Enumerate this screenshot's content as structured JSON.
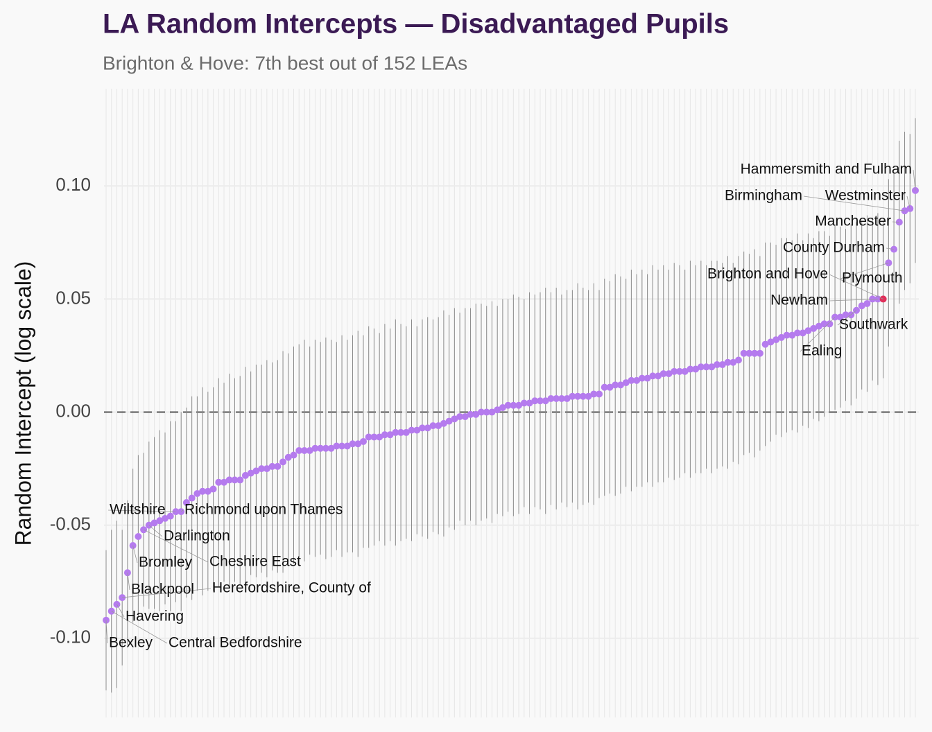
{
  "chart_data": {
    "type": "caterpillar",
    "title": "LA Random Intercepts — Disadvantaged Pupils",
    "subtitle": "Brighton & Hove: 7th best out of 152 LEAs",
    "y_label": "Random Intercept (log scale)",
    "categories": [
      "Bexley",
      "Central Bedfordshire",
      "Havering",
      "Herefordshire, County of",
      "Blackpool",
      "Bromley",
      null,
      "Cheshire East",
      "Darlington",
      null,
      null,
      null,
      null,
      "Wiltshire",
      "Richmond upon Thames",
      null,
      null,
      null,
      null,
      null,
      null,
      null,
      null,
      null,
      null,
      null,
      null,
      null,
      null,
      null,
      null,
      null,
      null,
      null,
      null,
      null,
      null,
      null,
      null,
      null,
      null,
      null,
      null,
      null,
      null,
      null,
      null,
      null,
      null,
      null,
      null,
      null,
      null,
      null,
      null,
      null,
      null,
      null,
      null,
      null,
      null,
      null,
      null,
      null,
      null,
      null,
      null,
      null,
      null,
      null,
      null,
      null,
      null,
      null,
      null,
      null,
      null,
      null,
      null,
      null,
      null,
      null,
      null,
      null,
      null,
      null,
      null,
      null,
      null,
      null,
      null,
      null,
      null,
      null,
      null,
      null,
      null,
      null,
      null,
      null,
      null,
      null,
      null,
      null,
      null,
      null,
      null,
      null,
      null,
      null,
      null,
      null,
      null,
      null,
      null,
      null,
      null,
      null,
      null,
      null,
      null,
      null,
      null,
      null,
      null,
      null,
      null,
      null,
      null,
      null,
      null,
      null,
      null,
      null,
      null,
      null,
      "Ealing",
      null,
      null,
      null,
      "Southwark",
      null,
      null,
      null,
      "Newham",
      "Brighton and Hove",
      "Plymouth",
      "County Durham",
      "Manchester",
      "Birmingham",
      "Westminster",
      "Hammersmith and Fulham"
    ],
    "values": [
      -0.092,
      -0.088,
      -0.085,
      -0.082,
      -0.071,
      -0.059,
      -0.055,
      -0.052,
      -0.05,
      -0.049,
      -0.048,
      -0.047,
      -0.046,
      -0.044,
      -0.044,
      -0.04,
      -0.038,
      -0.036,
      -0.035,
      -0.035,
      -0.034,
      -0.031,
      -0.031,
      -0.03,
      -0.03,
      -0.03,
      -0.028,
      -0.027,
      -0.026,
      -0.025,
      -0.025,
      -0.024,
      -0.024,
      -0.022,
      -0.02,
      -0.019,
      -0.017,
      -0.017,
      -0.017,
      -0.016,
      -0.016,
      -0.016,
      -0.016,
      -0.015,
      -0.015,
      -0.015,
      -0.014,
      -0.014,
      -0.013,
      -0.011,
      -0.011,
      -0.011,
      -0.01,
      -0.01,
      -0.009,
      -0.009,
      -0.009,
      -0.008,
      -0.008,
      -0.007,
      -0.007,
      -0.006,
      -0.006,
      -0.005,
      -0.004,
      -0.003,
      -0.002,
      -0.002,
      -0.001,
      -0.001,
      0.0,
      0.0,
      0.0,
      0.001,
      0.002,
      0.003,
      0.003,
      0.003,
      0.004,
      0.004,
      0.005,
      0.005,
      0.005,
      0.006,
      0.006,
      0.006,
      0.006,
      0.007,
      0.007,
      0.007,
      0.007,
      0.008,
      0.008,
      0.011,
      0.011,
      0.012,
      0.012,
      0.013,
      0.014,
      0.014,
      0.015,
      0.015,
      0.016,
      0.016,
      0.017,
      0.017,
      0.018,
      0.018,
      0.018,
      0.019,
      0.019,
      0.02,
      0.02,
      0.02,
      0.021,
      0.021,
      0.022,
      0.022,
      0.023,
      0.026,
      0.026,
      0.026,
      0.026,
      0.03,
      0.031,
      0.032,
      0.033,
      0.034,
      0.034,
      0.035,
      0.035,
      0.036,
      0.037,
      0.038,
      0.039,
      0.039,
      0.042,
      0.042,
      0.043,
      0.043,
      0.045,
      0.047,
      0.048,
      0.05,
      0.05,
      0.05,
      0.066,
      0.072,
      0.084,
      0.089,
      0.09,
      0.098
    ],
    "errors": [
      0.031,
      0.036,
      0.037,
      0.03,
      0.032,
      0.034,
      0.036,
      0.034,
      0.037,
      0.038,
      0.04,
      0.038,
      0.042,
      0.04,
      0.044,
      0.042,
      0.045,
      0.043,
      0.046,
      0.044,
      0.045,
      0.046,
      0.044,
      0.047,
      0.045,
      0.046,
      0.048,
      0.045,
      0.047,
      0.046,
      0.048,
      0.046,
      0.047,
      0.049,
      0.046,
      0.048,
      0.047,
      0.049,
      0.046,
      0.048,
      0.047,
      0.049,
      0.048,
      0.046,
      0.049,
      0.047,
      0.048,
      0.05,
      0.047,
      0.049,
      0.048,
      0.046,
      0.049,
      0.047,
      0.05,
      0.048,
      0.047,
      0.049,
      0.046,
      0.048,
      0.049,
      0.047,
      0.048,
      0.05,
      0.047,
      0.049,
      0.046,
      0.048,
      0.047,
      0.049,
      0.048,
      0.047,
      0.049,
      0.046,
      0.048,
      0.047,
      0.049,
      0.048,
      0.046,
      0.049,
      0.047,
      0.048,
      0.05,
      0.047,
      0.049,
      0.046,
      0.048,
      0.047,
      0.05,
      0.048,
      0.047,
      0.049,
      0.046,
      0.048,
      0.047,
      0.049,
      0.048,
      0.046,
      0.049,
      0.047,
      0.048,
      0.046,
      0.049,
      0.047,
      0.048,
      0.046,
      0.048,
      0.047,
      0.045,
      0.048,
      0.046,
      0.047,
      0.045,
      0.047,
      0.046,
      0.045,
      0.047,
      0.044,
      0.046,
      0.045,
      0.044,
      0.046,
      0.043,
      0.045,
      0.044,
      0.042,
      0.044,
      0.043,
      0.042,
      0.044,
      0.041,
      0.043,
      0.04,
      0.042,
      0.041,
      0.039,
      0.041,
      0.04,
      0.038,
      0.04,
      0.039,
      0.037,
      0.039,
      0.036,
      0.038,
      0.035,
      0.037,
      0.034,
      0.036,
      0.035,
      0.033,
      0.032
    ],
    "color": "#b57bee",
    "highlight": {
      "category": "Brighton and Hove",
      "color": "#e0305a"
    },
    "ylim": [
      -0.135,
      0.143
    ],
    "yticks": [
      {
        "value": -0.1,
        "label": "-0.10"
      },
      {
        "value": -0.05,
        "label": "-0.05"
      },
      {
        "value": 0,
        "label": "0.00"
      },
      {
        "value": 0.05,
        "label": "0.05"
      },
      {
        "value": 0.1,
        "label": "0.10"
      }
    ],
    "reference_line": 0,
    "grid": true
  }
}
